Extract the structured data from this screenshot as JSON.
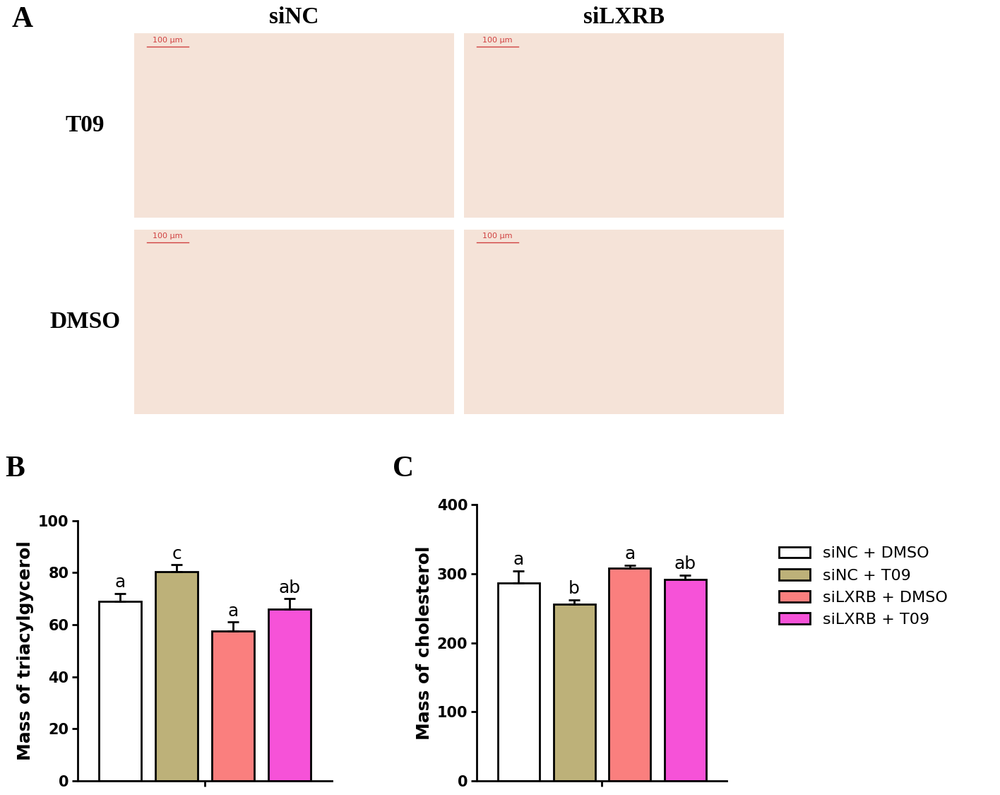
{
  "image_panel": {
    "panel_label": "A",
    "columns": [
      "siNC",
      "siLXRB"
    ],
    "rows": [
      "T09",
      "DMSO"
    ],
    "scale_bar": "100 μm"
  },
  "chart_data": [
    {
      "type": "bar",
      "panel_label": "B",
      "y_label": "Mass of triacylgycerol",
      "categories": [
        null
      ],
      "ylim": [
        0,
        100
      ],
      "yticks": [
        0,
        20,
        40,
        60,
        80,
        100
      ],
      "tick_labels": "y",
      "series": [
        {
          "name": "siNC + DMSO",
          "color": "#ffffff",
          "values": [
            69
          ],
          "errors": [
            3
          ],
          "annotations": [
            "a"
          ]
        },
        {
          "name": "siNC + T09",
          "color": "#bdb179",
          "values": [
            80.5
          ],
          "errors": [
            2.5
          ],
          "annotations": [
            "c"
          ]
        },
        {
          "name": "siLXRB + DMSO",
          "color": "#fa7f7e",
          "values": [
            57.5
          ],
          "errors": [
            3.5
          ],
          "annotations": [
            "a"
          ]
        },
        {
          "name": "siLXRB + T09",
          "color": "#f652d8",
          "values": [
            66
          ],
          "errors": [
            4
          ],
          "annotations": [
            "ab"
          ]
        }
      ]
    },
    {
      "type": "bar",
      "panel_label": "C",
      "y_label": "Mass of cholesterol",
      "categories": [
        null
      ],
      "ylim": [
        0,
        400
      ],
      "yticks": [
        0,
        100,
        200,
        300,
        400
      ],
      "tick_labels": "y",
      "legend": "upper left",
      "series": [
        {
          "name": "siNC + DMSO",
          "color": "#ffffff",
          "values": [
            287
          ],
          "errors": [
            17
          ],
          "annotations": [
            "a"
          ]
        },
        {
          "name": "siNC + T09",
          "color": "#bdb179",
          "values": [
            256
          ],
          "errors": [
            6
          ],
          "annotations": [
            "b"
          ]
        },
        {
          "name": "siLXRB + DMSO",
          "color": "#fa7f7e",
          "values": [
            308
          ],
          "errors": [
            4
          ],
          "annotations": [
            "a"
          ]
        },
        {
          "name": "siLXRB + T09",
          "color": "#f652d8",
          "values": [
            292
          ],
          "errors": [
            6
          ],
          "annotations": [
            "ab"
          ]
        }
      ]
    }
  ]
}
